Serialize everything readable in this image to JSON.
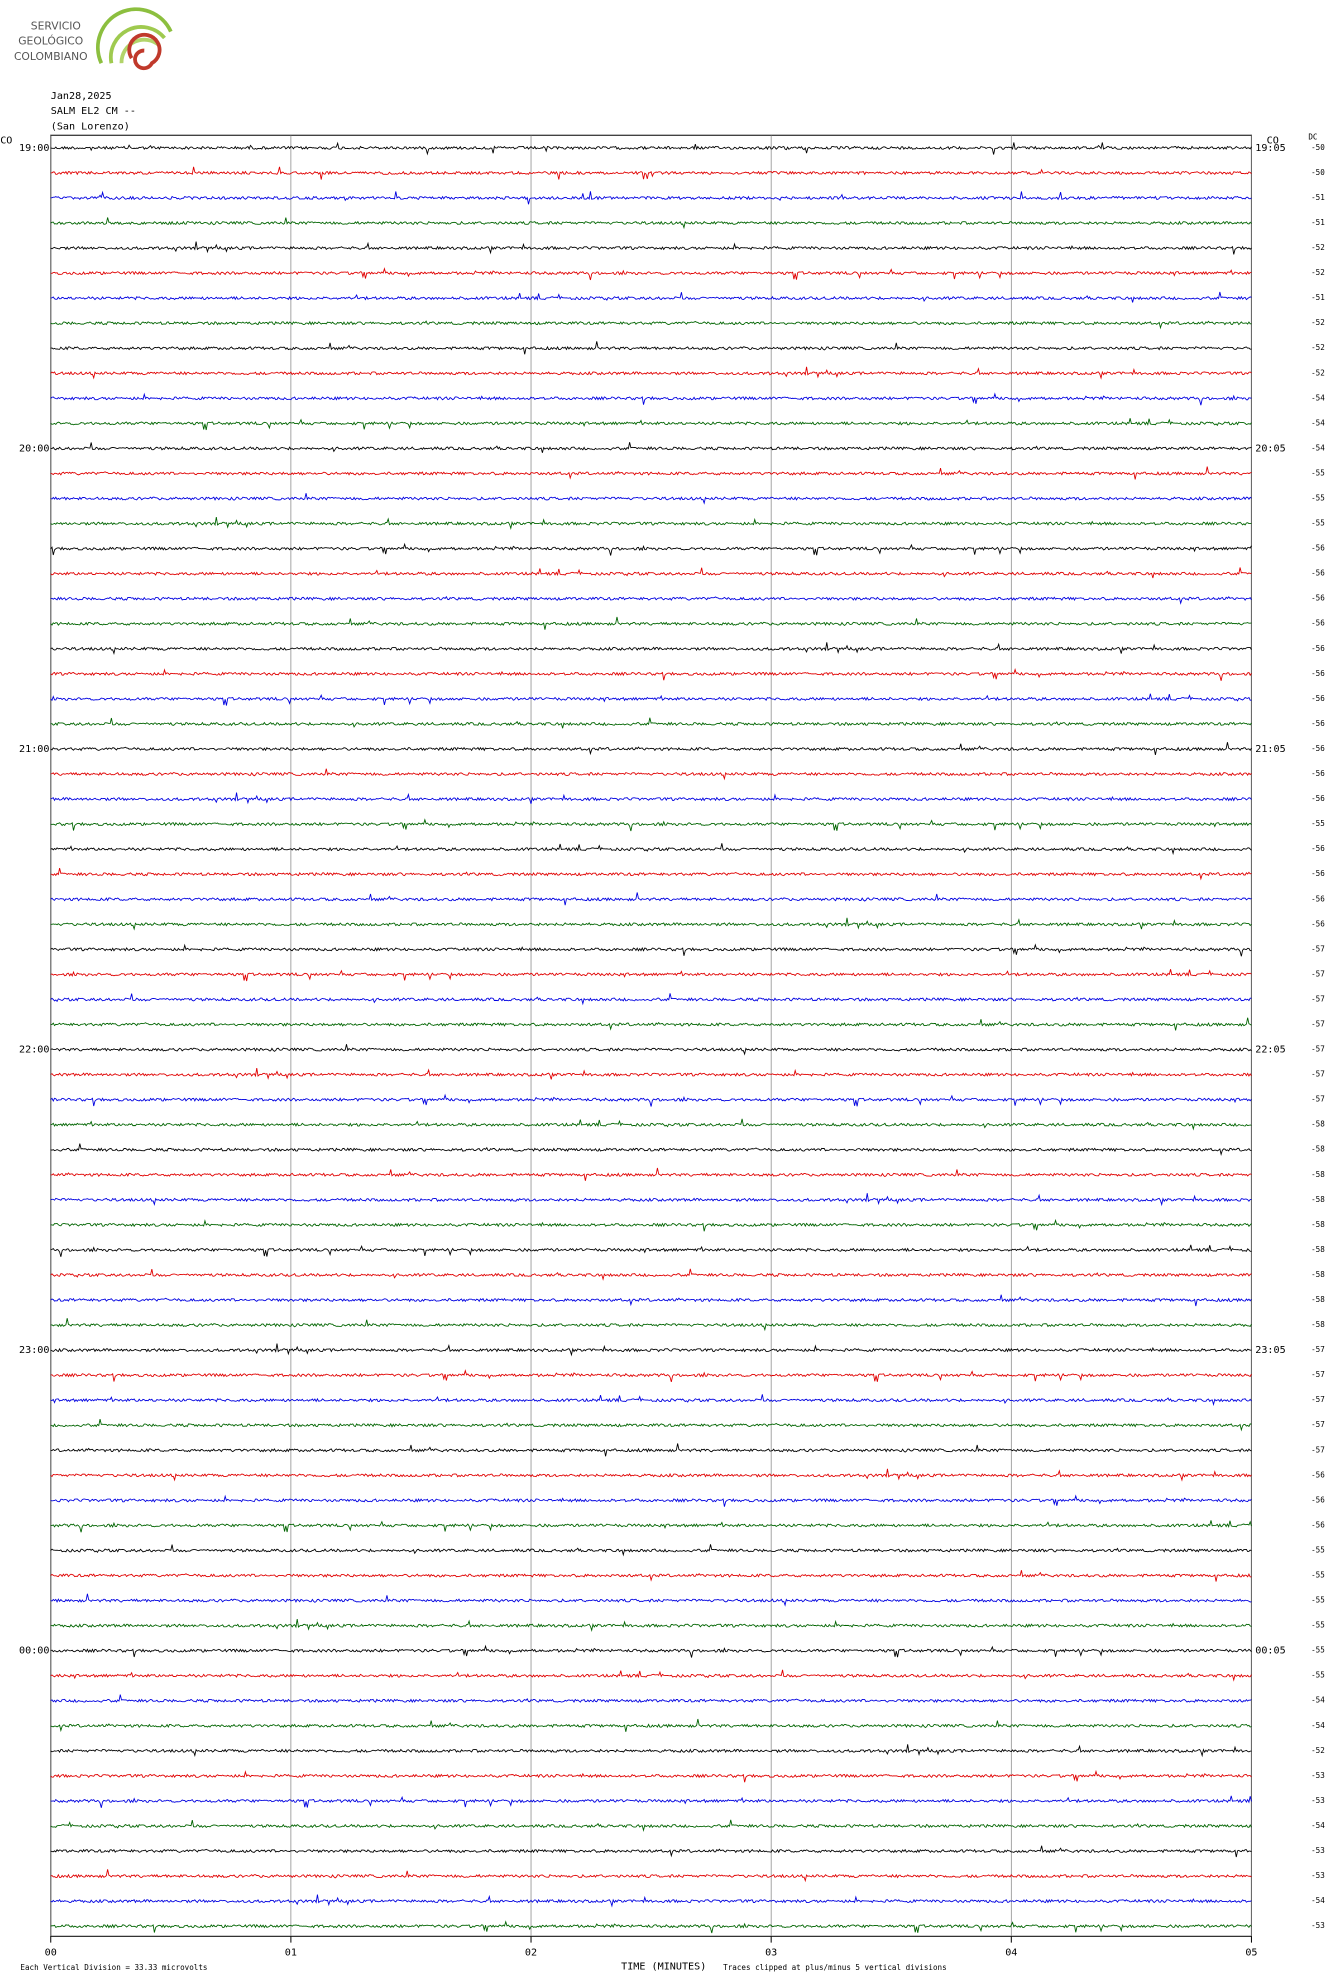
{
  "header": {
    "org": [
      "SERVICIO",
      "GEOLÓGICO",
      "COLOMBIANO"
    ],
    "date": "Jan28,2025",
    "station": "SALM EL2 CM --",
    "location": "(San Lorenzo)",
    "network_left": "CO",
    "network_right": "CO",
    "dc_header": "DC"
  },
  "chart_data": {
    "type": "helicorder",
    "xlabel": "TIME (MINUTES)",
    "xlim": [
      0,
      5
    ],
    "xticks": [
      {
        "value": 0,
        "label": "00"
      },
      {
        "value": 1,
        "label": "01"
      },
      {
        "value": 2,
        "label": "02"
      },
      {
        "value": 3,
        "label": "03"
      },
      {
        "value": 4,
        "label": "04"
      },
      {
        "value": 5,
        "label": "05"
      }
    ],
    "row_colors": [
      "#000000",
      "#e00000",
      "#0000e0",
      "#006400"
    ],
    "left_labels": [
      "19:00",
      "20:00",
      "21:00",
      "22:00",
      "23:00",
      "00:00"
    ],
    "right_labels": [
      "19:05",
      "20:05",
      "21:05",
      "22:05",
      "23:05",
      "00:05"
    ],
    "dc_values": [
      -50,
      -50,
      -51,
      -51,
      -52,
      -52,
      -51,
      -52,
      -52,
      -52,
      -54,
      -54,
      -54,
      -55,
      -55,
      -55,
      -56,
      -56,
      -56,
      -56,
      -56,
      -56,
      -56,
      -56,
      -56,
      -56,
      -56,
      -55,
      -56,
      -56,
      -56,
      -56,
      -57,
      -57,
      -57,
      -57,
      -57,
      -57,
      -57,
      -58,
      -58,
      -58,
      -58,
      -58,
      -58,
      -58,
      -58,
      -58,
      -57,
      -57,
      -57,
      -57,
      -57,
      -56,
      -56,
      -56,
      -55,
      -55,
      -55,
      -55,
      -55,
      -55,
      -54,
      -54,
      -52,
      -53,
      -53,
      -54,
      -53,
      -53,
      -54,
      -53
    ],
    "footer_left": "Each Vertical Division =  33.33 microvolts",
    "footer_right": "Traces clipped at plus/minus 5 vertical divisions"
  }
}
